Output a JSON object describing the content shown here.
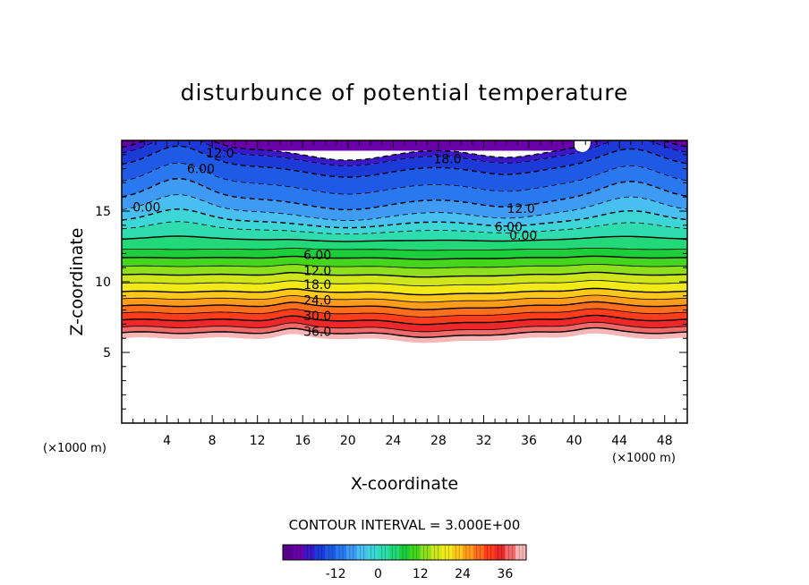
{
  "chart_data": {
    "type": "contour",
    "title": "disturbunce of potential temperature",
    "xlabel": "X-coordinate",
    "ylabel": "Z-coordinate",
    "x_unit": "(×1000 m)",
    "z_unit": "(×1000 m)",
    "xlim": [
      0,
      50
    ],
    "ylim": [
      0,
      20
    ],
    "x_ticks": [
      "4",
      "8",
      "12",
      "16",
      "20",
      "24",
      "28",
      "32",
      "36",
      "40",
      "44",
      "48"
    ],
    "x_tick_values": [
      4,
      8,
      12,
      16,
      20,
      24,
      28,
      32,
      36,
      40,
      44,
      48
    ],
    "y_ticks": [
      "5",
      "10",
      "15"
    ],
    "y_tick_values": [
      5,
      10,
      15
    ],
    "contour_interval_text": "CONTOUR INTERVAL = 3.000E+00",
    "contour_interval": 3.0,
    "negative_contours": "dashed",
    "positive_contours": "solid",
    "contour_labels": [
      {
        "text": "12.0",
        "value": -12,
        "x": 8.7,
        "z": 19.1
      },
      {
        "text": "6.00",
        "value": -6,
        "x": 7.0,
        "z": 18.0
      },
      {
        "text": "0.00",
        "value": 0,
        "x": 2.2,
        "z": 15.3
      },
      {
        "text": "18.0",
        "value": -18,
        "x": 28.8,
        "z": 18.7
      },
      {
        "text": "12.0",
        "value": -12,
        "x": 35.3,
        "z": 15.2
      },
      {
        "text": "6.00",
        "value": -6,
        "x": 34.2,
        "z": 13.9
      },
      {
        "text": "0.00",
        "value": 0,
        "x": 35.5,
        "z": 13.3
      },
      {
        "text": "6.00",
        "value": 6,
        "x": 17.3,
        "z": 11.9
      },
      {
        "text": "12.0",
        "value": 12,
        "x": 17.3,
        "z": 10.8
      },
      {
        "text": "18.0",
        "value": 18,
        "x": 17.3,
        "z": 9.8
      },
      {
        "text": "24.0",
        "value": 24,
        "x": 17.3,
        "z": 8.7
      },
      {
        "text": "30.0",
        "value": 30,
        "x": 17.3,
        "z": 7.6
      },
      {
        "text": "36.0",
        "value": 36,
        "x": 17.3,
        "z": 6.5
      }
    ],
    "bands": [
      {
        "value": -24,
        "color": "#6a00a8",
        "z_base": 19.4
      },
      {
        "value": -21,
        "color": "#3a18c8",
        "z_base": 19.0
      },
      {
        "value": -18,
        "color": "#1c3ad8",
        "z_base": 18.2
      },
      {
        "value": -15,
        "color": "#1e5ae6",
        "z_base": 17.0
      },
      {
        "value": -12,
        "color": "#2a78f0",
        "z_base": 15.9
      },
      {
        "value": -9,
        "color": "#3f9af4",
        "z_base": 15.0
      },
      {
        "value": -6,
        "color": "#47bff0",
        "z_base": 14.3
      },
      {
        "value": -3,
        "color": "#3cd6d6",
        "z_base": 13.7
      },
      {
        "value": 0,
        "color": "#2fdcae",
        "z_base": 13.0
      },
      {
        "value": 3,
        "color": "#22d878",
        "z_base": 12.3
      },
      {
        "value": 6,
        "color": "#1ccf3a",
        "z_base": 11.7
      },
      {
        "value": 9,
        "color": "#44d61c",
        "z_base": 11.1
      },
      {
        "value": 12,
        "color": "#8ee01c",
        "z_base": 10.5
      },
      {
        "value": 15,
        "color": "#cfe61c",
        "z_base": 9.9
      },
      {
        "value": 18,
        "color": "#f2ea16",
        "z_base": 9.3
      },
      {
        "value": 21,
        "color": "#ffc81a",
        "z_base": 8.8
      },
      {
        "value": 24,
        "color": "#ff9c1c",
        "z_base": 8.3
      },
      {
        "value": 27,
        "color": "#ff6e1c",
        "z_base": 7.8
      },
      {
        "value": 30,
        "color": "#ff3c1c",
        "z_base": 7.3
      },
      {
        "value": 33,
        "color": "#ee2828",
        "z_base": 6.8
      },
      {
        "value": 36,
        "color": "#f06a6a",
        "z_base": 6.4
      },
      {
        "value": 39,
        "color": "#f8b6b6",
        "z_base": 6.0
      }
    ],
    "colorbar": {
      "tick_labels": [
        "-12",
        "0",
        "12",
        "24",
        "36"
      ],
      "tick_values": [
        -12,
        0,
        12,
        24,
        36
      ],
      "range": [
        -27,
        42
      ]
    }
  }
}
